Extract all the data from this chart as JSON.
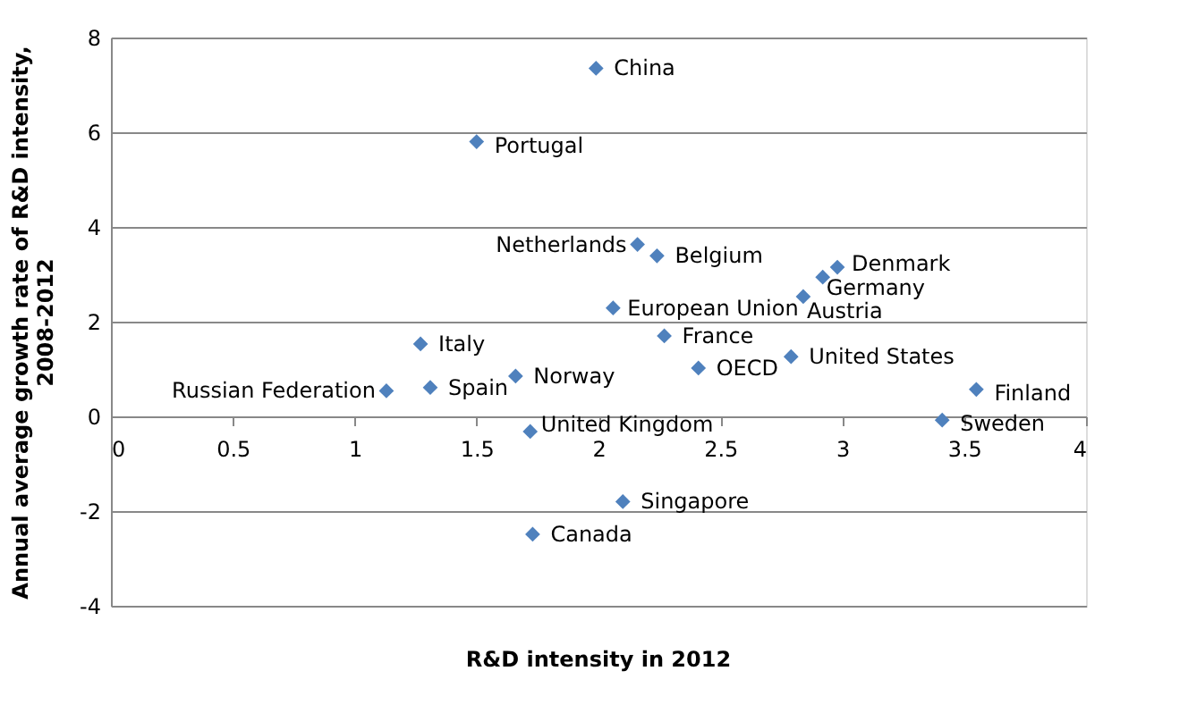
{
  "chart_data": {
    "type": "scatter",
    "xlabel": "R&D intensity in 2012",
    "ylabel": "Annual average growth rate of R&D intensity, 2008-2012",
    "x": [
      1.99,
      1.5,
      2.16,
      2.24,
      2.98,
      2.92,
      2.84,
      2.06,
      2.27,
      1.27,
      2.41,
      2.79,
      1.66,
      1.13,
      1.31,
      3.55,
      3.41,
      1.72,
      2.1,
      1.73
    ],
    "values": [
      7.35,
      5.8,
      3.63,
      3.39,
      3.15,
      2.94,
      2.53,
      2.29,
      1.7,
      1.53,
      1.02,
      1.26,
      0.85,
      0.54,
      0.61,
      0.57,
      -0.08,
      -0.32,
      -1.8,
      -2.49
    ],
    "value_labels": [
      "China",
      "Portugal",
      "Netherlands",
      "Belgium",
      "Denmark",
      "Germany",
      "Austria",
      "European Union",
      "France",
      "Italy",
      "OECD",
      "United States",
      "Norway",
      "Russian Federation",
      "Spain",
      "Finland",
      "Sweden",
      "United Kingdom",
      "Singapore",
      "Canada"
    ],
    "color": "#4f81bd",
    "marker": "diamond",
    "xlim": [
      0,
      4
    ],
    "xticks": [
      0,
      0.5,
      1,
      1.5,
      2,
      2.5,
      3,
      3.5,
      4
    ],
    "ylim": [
      -4,
      8
    ],
    "yticks": [
      -4,
      -2,
      0,
      2,
      4,
      6,
      8
    ],
    "grid": "y"
  }
}
